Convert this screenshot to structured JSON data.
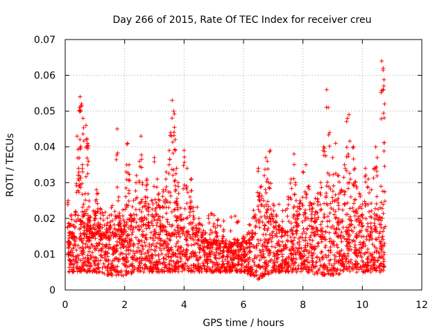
{
  "chart_data": {
    "type": "scatter",
    "title": "Day 266 of 2015, Rate Of TEC Index for receiver creu",
    "xlabel": "GPS time / hours",
    "ylabel": "ROTI / TECUs",
    "xlim": [
      0,
      12
    ],
    "ylim": [
      0,
      0.07
    ],
    "xticks": [
      0,
      2,
      4,
      6,
      8,
      10,
      12
    ],
    "xtick_labels": [
      "0",
      "2",
      "4",
      "6",
      "8",
      "10",
      "12"
    ],
    "yticks": [
      0,
      0.01,
      0.02,
      0.03,
      0.04,
      0.05,
      0.06,
      0.07
    ],
    "ytick_labels": [
      "0",
      "0.01",
      "0.02",
      "0.03",
      "0.04",
      "0.05",
      "0.06",
      "0.07"
    ],
    "grid": true,
    "marker": "+",
    "color": "#ff0000",
    "series": [
      {
        "name": "ROTI",
        "x": [
          0.1,
          0.12,
          0.15,
          0.2,
          0.25,
          0.3,
          0.35,
          0.4,
          0.45,
          0.48,
          0.5,
          0.52,
          0.55,
          0.58,
          0.6,
          0.62,
          0.65,
          0.7,
          0.72,
          0.75,
          0.78,
          0.8,
          0.85,
          0.9,
          0.95,
          1.0,
          1.05,
          1.1,
          1.15,
          1.2,
          1.3,
          1.4,
          1.5,
          1.6,
          1.7,
          1.75,
          1.8,
          1.85,
          1.9,
          1.95,
          2.0,
          2.05,
          2.1,
          2.15,
          2.2,
          2.3,
          2.4,
          2.5,
          2.55,
          2.6,
          2.7,
          2.75,
          2.8,
          2.9,
          3.0,
          3.1,
          3.15,
          3.2,
          3.3,
          3.4,
          3.5,
          3.55,
          3.6,
          3.65,
          3.7,
          3.72,
          3.75,
          3.8,
          3.9,
          4.0,
          4.1,
          4.2,
          4.25,
          4.3,
          4.4,
          4.5,
          4.6,
          4.7,
          4.8,
          4.9,
          5.0,
          5.1,
          5.2,
          5.3,
          5.4,
          5.5,
          5.6,
          5.7,
          5.8,
          5.9,
          6.0,
          6.1,
          6.2,
          6.3,
          6.4,
          6.5,
          6.55,
          6.6,
          6.7,
          6.75,
          6.8,
          6.85,
          6.9,
          7.0,
          7.1,
          7.2,
          7.3,
          7.4,
          7.5,
          7.6,
          7.7,
          7.75,
          7.8,
          7.9,
          8.0,
          8.1,
          8.2,
          8.3,
          8.4,
          8.5,
          8.6,
          8.7,
          8.8,
          8.85,
          8.9,
          9.0,
          9.1,
          9.2,
          9.3,
          9.4,
          9.5,
          9.55,
          9.6,
          9.7,
          9.75,
          9.8,
          9.9,
          10.0,
          10.1,
          10.2,
          10.3,
          10.4,
          10.45,
          10.5,
          10.6,
          10.65,
          10.7,
          10.72,
          10.75
        ],
        "y": [
          0.025,
          0.012,
          0.018,
          0.021,
          0.016,
          0.015,
          0.022,
          0.043,
          0.034,
          0.051,
          0.054,
          0.05,
          0.052,
          0.035,
          0.048,
          0.024,
          0.022,
          0.046,
          0.042,
          0.041,
          0.036,
          0.02,
          0.018,
          0.016,
          0.015,
          0.022,
          0.028,
          0.027,
          0.018,
          0.014,
          0.015,
          0.017,
          0.018,
          0.016,
          0.015,
          0.045,
          0.026,
          0.02,
          0.017,
          0.012,
          0.019,
          0.033,
          0.041,
          0.035,
          0.021,
          0.025,
          0.032,
          0.036,
          0.043,
          0.03,
          0.026,
          0.031,
          0.021,
          0.025,
          0.037,
          0.031,
          0.027,
          0.023,
          0.028,
          0.033,
          0.039,
          0.044,
          0.053,
          0.05,
          0.042,
          0.028,
          0.034,
          0.03,
          0.021,
          0.039,
          0.034,
          0.026,
          0.031,
          0.022,
          0.018,
          0.02,
          0.016,
          0.014,
          0.013,
          0.012,
          0.014,
          0.016,
          0.012,
          0.015,
          0.013,
          0.011,
          0.012,
          0.013,
          0.014,
          0.012,
          0.015,
          0.013,
          0.014,
          0.016,
          0.021,
          0.034,
          0.027,
          0.029,
          0.032,
          0.037,
          0.036,
          0.03,
          0.039,
          0.024,
          0.021,
          0.018,
          0.017,
          0.016,
          0.026,
          0.031,
          0.038,
          0.03,
          0.022,
          0.025,
          0.033,
          0.035,
          0.029,
          0.024,
          0.021,
          0.027,
          0.03,
          0.04,
          0.056,
          0.051,
          0.044,
          0.037,
          0.041,
          0.032,
          0.028,
          0.035,
          0.048,
          0.049,
          0.031,
          0.04,
          0.034,
          0.029,
          0.027,
          0.024,
          0.034,
          0.031,
          0.028,
          0.034,
          0.04,
          0.037,
          0.023,
          0.064,
          0.062,
          0.057,
          0.052
        ],
        "baseline": {
          "x": [
            0.1,
            0.5,
            1.0,
            1.5,
            2.0,
            2.5,
            3.0,
            3.5,
            4.0,
            4.5,
            5.0,
            5.5,
            6.0,
            6.5,
            7.0,
            7.5,
            8.0,
            8.5,
            9.0,
            9.5,
            10.0,
            10.5,
            10.75
          ],
          "low": [
            0.005,
            0.005,
            0.005,
            0.004,
            0.004,
            0.005,
            0.005,
            0.005,
            0.005,
            0.005,
            0.005,
            0.005,
            0.005,
            0.003,
            0.005,
            0.005,
            0.005,
            0.004,
            0.004,
            0.005,
            0.005,
            0.005,
            0.005
          ],
          "high": [
            0.014,
            0.015,
            0.016,
            0.016,
            0.016,
            0.017,
            0.017,
            0.017,
            0.017,
            0.015,
            0.013,
            0.013,
            0.013,
            0.015,
            0.016,
            0.016,
            0.017,
            0.018,
            0.018,
            0.017,
            0.017,
            0.017,
            0.016
          ]
        }
      }
    ]
  }
}
